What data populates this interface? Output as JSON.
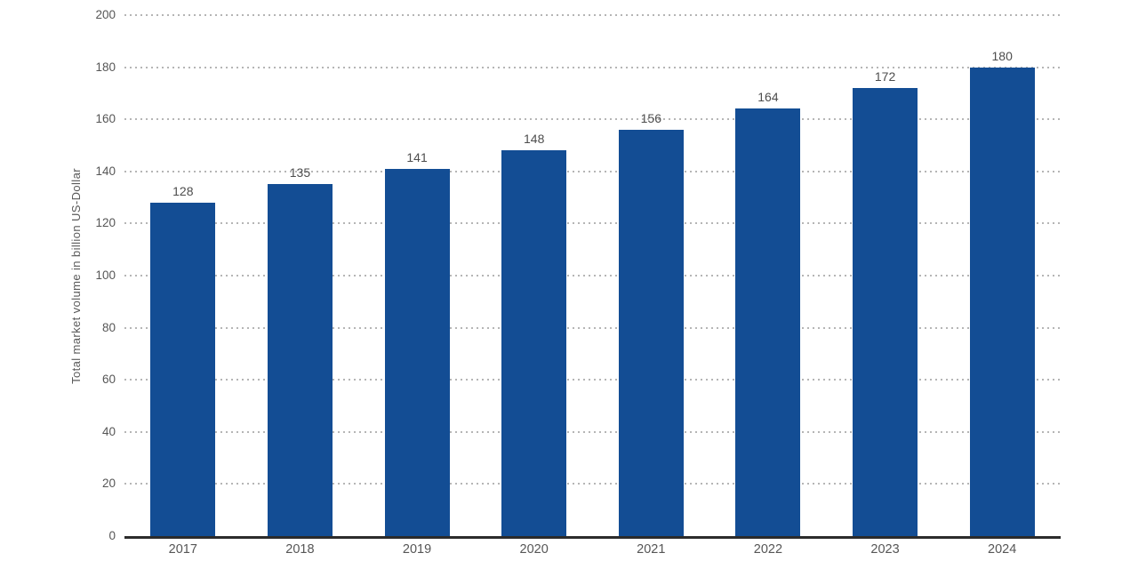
{
  "chart_data": {
    "type": "bar",
    "title": "",
    "xlabel": "",
    "ylabel": "Total market volume in billion US-Dollar",
    "categories": [
      "2017",
      "2018",
      "2019",
      "2020",
      "2021",
      "2022",
      "2023",
      "2024"
    ],
    "values": [
      128,
      135,
      141,
      148,
      156,
      164,
      172,
      180
    ],
    "ylim": [
      0,
      200
    ],
    "yticks": [
      0,
      20,
      40,
      60,
      80,
      100,
      120,
      140,
      160,
      180,
      200
    ],
    "grid": "horizontal-dotted",
    "legend": "none",
    "value_labels_shown": true,
    "colors": {
      "bar": "#134d94",
      "axis": "#2b2b2b",
      "gridline": "#b5b5b5",
      "value_label": "#4d4d4d",
      "tick_label": "#565656"
    }
  }
}
